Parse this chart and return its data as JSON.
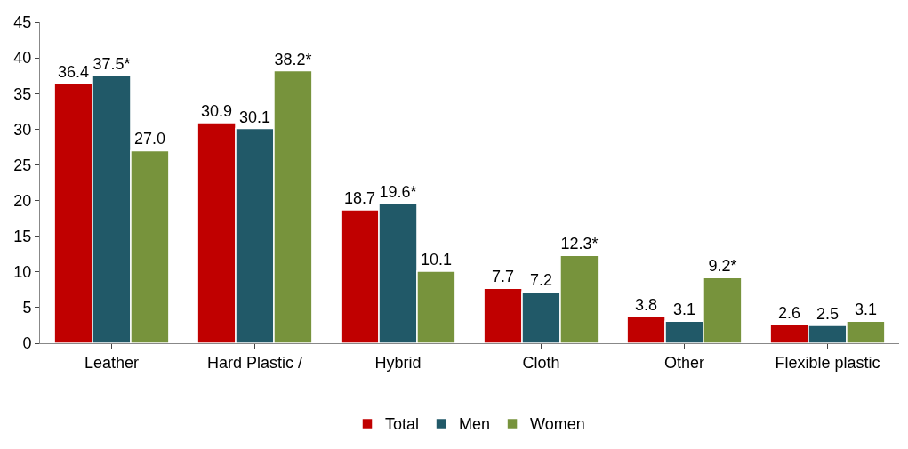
{
  "chart_data": {
    "type": "bar",
    "categories": [
      "Leather",
      "Hard Plastic /",
      "Hybrid",
      "Cloth",
      "Other",
      "Flexible plastic"
    ],
    "series": [
      {
        "name": "Total",
        "color": "#c00000",
        "values": [
          36.4,
          30.9,
          18.7,
          7.7,
          3.8,
          2.6
        ],
        "value_labels": [
          "36.4",
          "30.9",
          "18.7",
          "7.7",
          "3.8",
          "2.6"
        ]
      },
      {
        "name": "Men",
        "color": "#215968",
        "values": [
          37.5,
          30.1,
          19.6,
          7.2,
          3.1,
          2.5
        ],
        "value_labels": [
          "37.5*",
          "30.1",
          "19.6*",
          "7.2",
          "3.1",
          "2.5"
        ]
      },
      {
        "name": "Women",
        "color": "#77933c",
        "values": [
          27.0,
          38.2,
          10.1,
          12.3,
          9.2,
          3.1
        ],
        "value_labels": [
          "27.0",
          "38.2*",
          "10.1",
          "12.3*",
          "9.2*",
          "3.1"
        ]
      }
    ],
    "ylim": [
      0,
      45
    ],
    "yticks": [
      0,
      5,
      10,
      15,
      20,
      25,
      30,
      35,
      40,
      45
    ],
    "legend": "bottom"
  }
}
